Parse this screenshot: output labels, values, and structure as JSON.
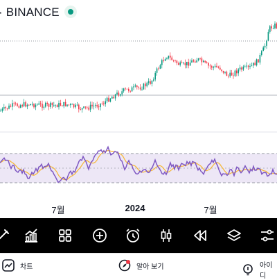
{
  "header": {
    "title": "· BINANCE",
    "status_icon": "live-dot-icon",
    "status_color": "#089981"
  },
  "time_axis": {
    "labels": [
      "7월",
      "2024",
      "7월"
    ]
  },
  "colors": {
    "up": "#089981",
    "down": "#f23645",
    "rsi_line": "#7e57c2",
    "rsi_ma": "#f7b733",
    "rsi_band": "#ede7f6"
  },
  "toolbar": {
    "tools": [
      {
        "name": "draw-tool-icon"
      },
      {
        "name": "indicators-icon"
      },
      {
        "name": "layout-grid-icon"
      },
      {
        "name": "add-icon"
      },
      {
        "name": "alert-clock-icon"
      },
      {
        "name": "candles-icon"
      },
      {
        "name": "replay-icon"
      },
      {
        "name": "layers-icon"
      },
      {
        "name": "settings-sliders-icon"
      }
    ]
  },
  "bottom_nav": {
    "chart_label": "차트",
    "learn_label": "알아 보기",
    "ideas_label": "아이디"
  }
}
